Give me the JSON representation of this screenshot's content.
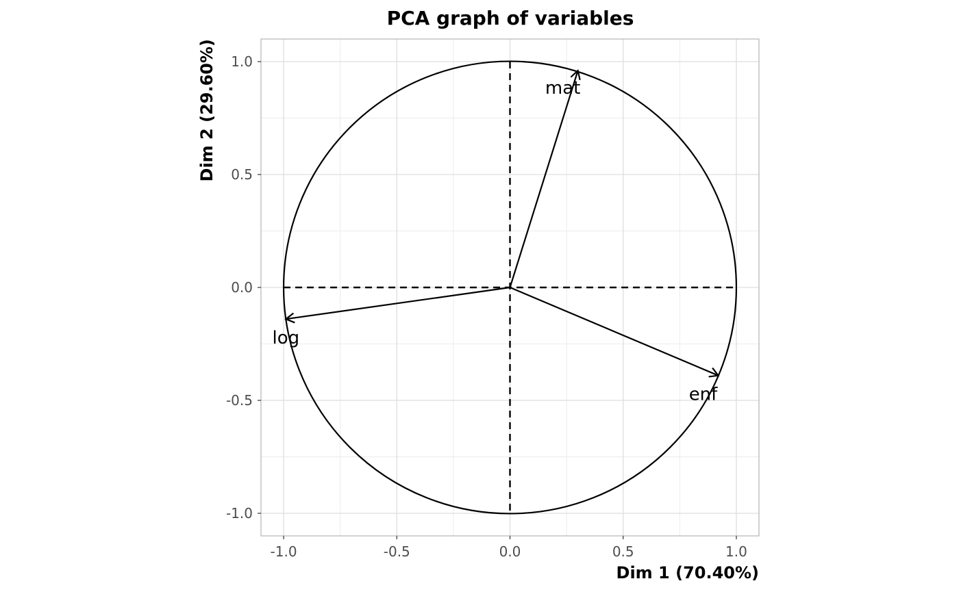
{
  "chart_data": {
    "type": "scatter",
    "title": "PCA graph of variables",
    "xlabel": "Dim 1 (70.40%)",
    "ylabel": "Dim 2 (29.60%)",
    "xlim": [
      -1.1,
      1.1
    ],
    "ylim": [
      -1.1,
      1.1
    ],
    "x_ticks": [
      -1.0,
      -0.5,
      0.0,
      0.5,
      1.0
    ],
    "y_ticks": [
      -1.0,
      -0.5,
      0.0,
      0.5,
      1.0
    ],
    "x_tick_labels": [
      "-1.0",
      "-0.5",
      "0.0",
      "0.5",
      "1.0"
    ],
    "y_tick_labels": [
      "-1.0",
      "-0.5",
      "0.0",
      "0.5",
      "1.0"
    ],
    "grid": true,
    "correlation_circle": true,
    "variables": [
      {
        "label": "mat",
        "x": 0.3,
        "y": 0.96
      },
      {
        "label": "log",
        "x": -0.99,
        "y": -0.14
      },
      {
        "label": "enf",
        "x": 0.92,
        "y": -0.39
      }
    ]
  }
}
